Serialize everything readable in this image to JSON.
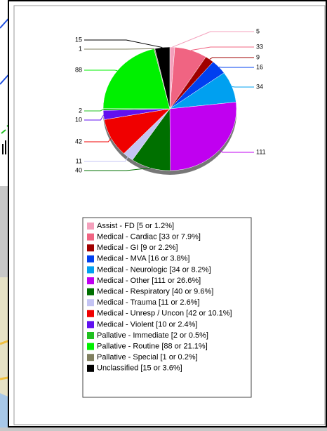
{
  "chart_data": {
    "type": "pie",
    "categories": [
      "Assist - FD [5 or 1.2%]",
      "Medical - Cardiac [33 or 7.9%]",
      "Medical - GI [9 or 2.2%]",
      "Medical - MVA [16 or 3.8%]",
      "Medical - Neurologic [34 or 8.2%]",
      "Medical - Other [111 or 26.6%]",
      "Medical - Respiratory [40 or 9.6%]",
      "Medical - Trauma [11 or 2.6%]",
      "Medical - Unresp / Uncon [42 or 10.1%]",
      "Medical - Violent [10 or 2.4%]",
      "Pallative - Immediate [2 or 0.5%]",
      "Pallative - Routine [88 or 21.1%]",
      "Pallative - Special [1 or 0.2%]",
      "Unclassified [15 or 3.6%]"
    ],
    "values": [
      5,
      33,
      9,
      16,
      34,
      111,
      40,
      11,
      42,
      10,
      2,
      88,
      1,
      15
    ],
    "colors": [
      "#f4a0bc",
      "#f06482",
      "#a00000",
      "#0040f0",
      "#00a0f0",
      "#c000f0",
      "#007000",
      "#c4c4f4",
      "#f00000",
      "#6010f0",
      "#20c020",
      "#00f000",
      "#808060",
      "#000000"
    ]
  }
}
